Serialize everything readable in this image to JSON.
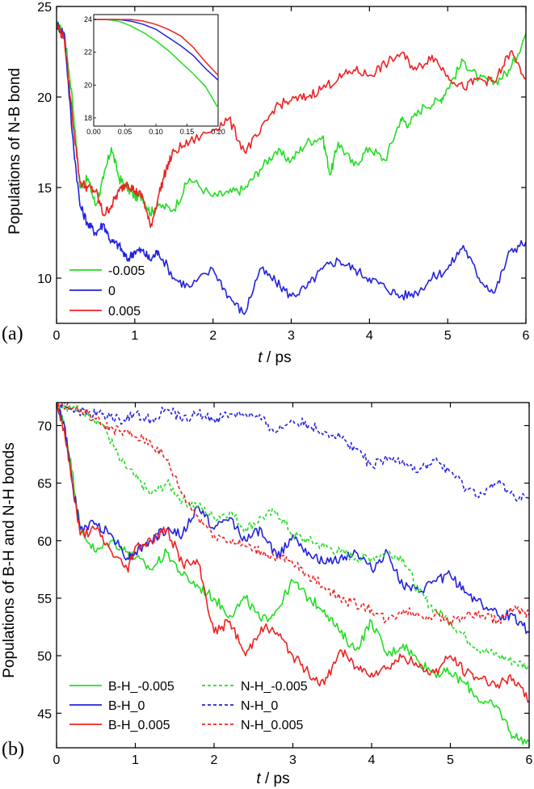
{
  "chart_data": [
    {
      "type": "line",
      "panel_label": "(a)",
      "xlabel_var": "t",
      "xlabel_unit": " / ps",
      "ylabel": "Populations of N-B bond",
      "xlim": [
        0,
        6
      ],
      "ylim": [
        7.5,
        25
      ],
      "xticks": [
        0,
        1,
        2,
        3,
        4,
        5,
        6
      ],
      "yticks": [
        10,
        15,
        20,
        25
      ],
      "legend_position": "bottom-left",
      "series": [
        {
          "name": "-0.005",
          "color": "#22dd22",
          "style": "solid",
          "x": [
            0,
            0.1,
            0.2,
            0.3,
            0.4,
            0.5,
            0.6,
            0.7,
            0.8,
            0.9,
            1.0,
            1.1,
            1.2,
            1.3,
            1.5,
            1.7,
            2.0,
            2.2,
            2.4,
            2.6,
            2.8,
            3.0,
            3.2,
            3.4,
            3.5,
            3.6,
            3.8,
            4.0,
            4.2,
            4.4,
            4.5,
            4.7,
            4.9,
            5.0,
            5.2,
            5.4,
            5.6,
            5.8,
            6.0
          ],
          "y": [
            24,
            23.5,
            20,
            15,
            15.5,
            14,
            15.5,
            17.2,
            15.5,
            15,
            14.5,
            14.5,
            13.6,
            14,
            13.8,
            15.5,
            14.5,
            14.7,
            14.9,
            16,
            17,
            16.5,
            17.5,
            17.8,
            15.7,
            17.5,
            16.2,
            17.2,
            16.5,
            18.8,
            18.5,
            19.5,
            19.8,
            20.5,
            22,
            21,
            20.8,
            21.5,
            23.5
          ]
        },
        {
          "name": "0",
          "color": "#2222dd",
          "style": "solid",
          "x": [
            0,
            0.1,
            0.2,
            0.3,
            0.4,
            0.5,
            0.6,
            0.7,
            0.8,
            0.9,
            1.0,
            1.1,
            1.2,
            1.3,
            1.5,
            1.7,
            2.0,
            2.2,
            2.4,
            2.6,
            2.8,
            3.0,
            3.2,
            3.4,
            3.6,
            3.8,
            4.0,
            4.2,
            4.4,
            4.6,
            4.8,
            5.0,
            5.2,
            5.4,
            5.6,
            5.8,
            6.0
          ],
          "y": [
            24,
            23.5,
            18,
            14,
            13,
            12.5,
            13,
            12,
            11.8,
            11,
            11.5,
            11.5,
            11,
            11.5,
            10,
            9.5,
            10.5,
            9,
            8,
            10.5,
            9.8,
            9,
            9.5,
            10.5,
            11,
            10.5,
            10,
            9.5,
            9,
            9.2,
            10,
            10.5,
            11.8,
            10,
            9.2,
            11.5,
            12
          ]
        },
        {
          "name": "0.005",
          "color": "#ee2222",
          "style": "solid",
          "x": [
            0,
            0.1,
            0.2,
            0.3,
            0.4,
            0.5,
            0.6,
            0.7,
            0.8,
            0.9,
            1.0,
            1.1,
            1.2,
            1.3,
            1.4,
            1.5,
            1.7,
            2.0,
            2.2,
            2.4,
            2.6,
            2.8,
            3.0,
            3.2,
            3.4,
            3.6,
            3.8,
            4.0,
            4.2,
            4.4,
            4.6,
            4.8,
            5.0,
            5.2,
            5.4,
            5.6,
            5.8,
            6.0
          ],
          "y": [
            24,
            23.2,
            19,
            15.3,
            15,
            14.8,
            13.5,
            14,
            14.8,
            15.3,
            14.8,
            14.5,
            12.8,
            14.5,
            16,
            17,
            17.5,
            18.2,
            18.8,
            17,
            18,
            19.5,
            19.8,
            20,
            20.5,
            21,
            21.5,
            21.2,
            21.8,
            22.4,
            21.5,
            22.3,
            21.2,
            20.5,
            21,
            20.8,
            22.5,
            21
          ]
        }
      ],
      "inset": {
        "xlim": [
          0,
          0.2
        ],
        "ylim": [
          17.5,
          24.3
        ],
        "xticks": [
          "0.00",
          "0.05",
          "0.10",
          "0.15",
          "0.20"
        ],
        "yticks": [
          "18",
          "20",
          "22",
          "24"
        ],
        "series": [
          {
            "name": "-0.005",
            "color": "#22dd22",
            "x": [
              0,
              0.02,
              0.04,
              0.06,
              0.08,
              0.1,
              0.12,
              0.14,
              0.16,
              0.18,
              0.2
            ],
            "y": [
              24,
              24,
              23.9,
              23.6,
              23.2,
              22.7,
              22.1,
              21.4,
              20.7,
              19.9,
              18.6
            ]
          },
          {
            "name": "0",
            "color": "#2222dd",
            "x": [
              0,
              0.02,
              0.04,
              0.06,
              0.08,
              0.1,
              0.12,
              0.14,
              0.16,
              0.18,
              0.2
            ],
            "y": [
              24,
              24,
              24,
              23.9,
              23.7,
              23.4,
              22.9,
              22.4,
              21.8,
              21,
              20.3
            ]
          },
          {
            "name": "0.005",
            "color": "#ee2222",
            "x": [
              0,
              0.02,
              0.04,
              0.06,
              0.08,
              0.1,
              0.12,
              0.14,
              0.16,
              0.18,
              0.2
            ],
            "y": [
              24,
              24,
              24,
              24,
              23.9,
              23.7,
              23.4,
              23,
              22.3,
              21.4,
              20.6
            ]
          }
        ]
      }
    },
    {
      "type": "line",
      "panel_label": "(b)",
      "xlabel_var": "t",
      "xlabel_unit": " / ps",
      "ylabel": "Populations of B-H and N-H bonds",
      "xlim": [
        0,
        6
      ],
      "ylim": [
        42,
        72
      ],
      "xticks": [
        0,
        1,
        2,
        3,
        4,
        5,
        6
      ],
      "yticks": [
        45,
        50,
        55,
        60,
        65,
        70
      ],
      "legend_position": "bottom-left",
      "series": [
        {
          "name": "B-H_-0.005",
          "color": "#22dd22",
          "style": "solid",
          "x": [
            0,
            0.1,
            0.2,
            0.3,
            0.5,
            0.7,
            0.9,
            1.0,
            1.2,
            1.4,
            1.6,
            1.8,
            2.0,
            2.2,
            2.4,
            2.6,
            2.8,
            3.0,
            3.2,
            3.4,
            3.6,
            3.8,
            4.0,
            4.2,
            4.4,
            4.6,
            4.8,
            5.0,
            5.2,
            5.4,
            5.6,
            5.8,
            6.0
          ],
          "y": [
            72,
            70,
            66,
            61,
            59,
            60,
            59,
            58.5,
            57.5,
            59,
            57,
            56,
            55,
            53.5,
            55,
            53,
            54,
            56.5,
            55,
            54,
            52,
            50.5,
            53,
            50,
            51,
            49.5,
            48.5,
            48.5,
            47.5,
            46,
            45.5,
            43,
            42.5
          ]
        },
        {
          "name": "B-H_0",
          "color": "#2222dd",
          "style": "solid",
          "x": [
            0,
            0.1,
            0.2,
            0.3,
            0.5,
            0.7,
            0.9,
            1.0,
            1.2,
            1.4,
            1.6,
            1.8,
            2.0,
            2.2,
            2.4,
            2.6,
            2.8,
            3.0,
            3.2,
            3.4,
            3.6,
            3.8,
            4.0,
            4.2,
            4.4,
            4.6,
            4.8,
            5.0,
            5.2,
            5.4,
            5.6,
            5.8,
            6.0
          ],
          "y": [
            72,
            70,
            65,
            61,
            61.5,
            60.5,
            58.5,
            59,
            60,
            61,
            60.5,
            63,
            61,
            62,
            60,
            61,
            58.5,
            60.5,
            59,
            58,
            58.5,
            59,
            57.5,
            59,
            56,
            55.5,
            56.5,
            57,
            55.5,
            54.5,
            53.5,
            53.5,
            52
          ]
        },
        {
          "name": "B-H_0.005",
          "color": "#ee2222",
          "style": "solid",
          "x": [
            0,
            0.1,
            0.2,
            0.3,
            0.5,
            0.7,
            0.9,
            1.0,
            1.2,
            1.4,
            1.6,
            1.8,
            2.0,
            2.2,
            2.4,
            2.6,
            2.8,
            3.0,
            3.2,
            3.4,
            3.6,
            3.8,
            4.0,
            4.2,
            4.4,
            4.6,
            4.8,
            5.0,
            5.2,
            5.4,
            5.6,
            5.8,
            6.0
          ],
          "y": [
            72,
            69.5,
            65,
            60.5,
            61,
            59,
            57.5,
            59.5,
            60,
            61,
            58,
            58,
            52,
            53,
            50,
            52.5,
            52,
            50,
            48.5,
            47.5,
            50.5,
            49,
            48.5,
            49,
            50,
            49,
            48.5,
            50,
            48.5,
            48,
            47.5,
            48,
            46
          ]
        },
        {
          "name": "N-H_-0.005",
          "color": "#22dd22",
          "style": "dashed",
          "x": [
            0,
            0.2,
            0.4,
            0.6,
            0.8,
            1.0,
            1.2,
            1.4,
            1.6,
            1.8,
            2.0,
            2.2,
            2.4,
            2.6,
            2.8,
            3.0,
            3.2,
            3.4,
            3.6,
            3.8,
            4.0,
            4.2,
            4.4,
            4.6,
            4.8,
            5.0,
            5.2,
            5.4,
            5.6,
            5.8,
            6.0
          ],
          "y": [
            72,
            71.5,
            71,
            70,
            67,
            65.5,
            64,
            65,
            63.5,
            63,
            62,
            62.5,
            61,
            62,
            62.5,
            60.5,
            60,
            59.5,
            59,
            58.5,
            58.5,
            59,
            58.5,
            55.5,
            54,
            53,
            51.5,
            50.5,
            50,
            49.5,
            49
          ]
        },
        {
          "name": "N-H_0",
          "color": "#2222dd",
          "style": "dashed",
          "x": [
            0,
            0.2,
            0.4,
            0.6,
            0.8,
            1.0,
            1.2,
            1.4,
            1.6,
            1.8,
            2.0,
            2.2,
            2.4,
            2.6,
            2.8,
            3.0,
            3.2,
            3.4,
            3.6,
            3.8,
            4.0,
            4.2,
            4.4,
            4.6,
            4.8,
            5.0,
            5.2,
            5.4,
            5.6,
            5.8,
            6.0
          ],
          "y": [
            72,
            71.5,
            71,
            71,
            70.5,
            71,
            70.5,
            71.5,
            70.5,
            71,
            70.5,
            71,
            71,
            70.5,
            69.5,
            70.5,
            70,
            69.5,
            69,
            68,
            66.5,
            67,
            67,
            66,
            67,
            66,
            64.5,
            64,
            65,
            64,
            63.5
          ]
        },
        {
          "name": "N-H_0.005",
          "color": "#ee2222",
          "style": "dashed",
          "x": [
            0,
            0.2,
            0.4,
            0.6,
            0.8,
            1.0,
            1.2,
            1.4,
            1.6,
            1.8,
            2.0,
            2.2,
            2.4,
            2.6,
            2.8,
            3.0,
            3.2,
            3.4,
            3.6,
            3.8,
            4.0,
            4.2,
            4.4,
            4.6,
            4.8,
            5.0,
            5.2,
            5.4,
            5.6,
            5.8,
            6.0
          ],
          "y": [
            72,
            71.5,
            71,
            70,
            69.5,
            69,
            68.5,
            67,
            64,
            62,
            60.5,
            60,
            59.5,
            59,
            58.5,
            58,
            57,
            56,
            55,
            54.5,
            54,
            53,
            54,
            53.5,
            53.5,
            53,
            53.5,
            53.5,
            53,
            54,
            53.5
          ]
        }
      ]
    }
  ]
}
